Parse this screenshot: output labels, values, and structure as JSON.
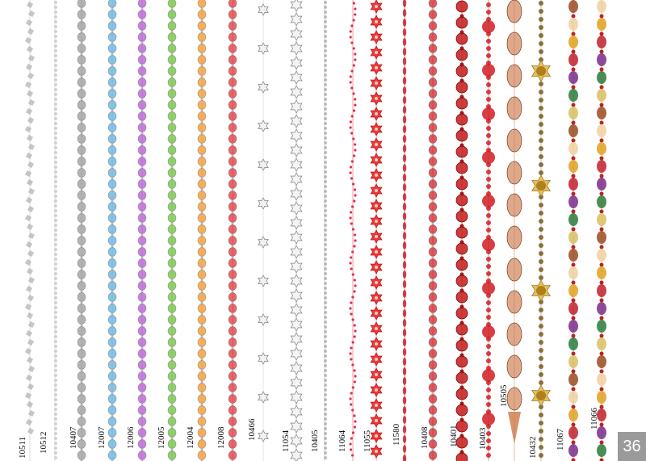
{
  "page_number": "36",
  "strands": [
    {
      "code": "10511",
      "color": "#b8b8b8",
      "bead": "chip"
    },
    {
      "code": "10512",
      "color": "#c4c4c4",
      "bead": "tiny"
    },
    {
      "code": "10407",
      "color": "#9a9a9a",
      "bead": "crystal"
    },
    {
      "code": "12007",
      "color": "#5fb0dc",
      "bead": "crystal"
    },
    {
      "code": "12006",
      "color": "#b45ad2",
      "bead": "crystal"
    },
    {
      "code": "12005",
      "color": "#6cc13c",
      "bead": "crystal"
    },
    {
      "code": "12004",
      "color": "#f0952a",
      "bead": "crystal"
    },
    {
      "code": "12008",
      "color": "#e0343c",
      "bead": "crystal"
    },
    {
      "code": "10466",
      "color": "#c8c8c8",
      "bead": "star-sparse"
    },
    {
      "code": "11054",
      "color": "#bdbdbd",
      "bead": "star"
    },
    {
      "code": "10405",
      "color": "#a8a8a8",
      "bead": "tiny"
    },
    {
      "code": "11064",
      "color": "#e0304a",
      "bead": "drip"
    },
    {
      "code": "11055",
      "color": "#ef3a3a",
      "bead": "flower"
    },
    {
      "code": "11580",
      "color": "#c8202c",
      "bead": "thin"
    },
    {
      "code": "10408",
      "color": "#d0242c",
      "bead": "crystal"
    },
    {
      "code": "10401",
      "color": "#c41a1a",
      "bead": "round"
    },
    {
      "code": "10403",
      "color": "#d01c22",
      "bead": "round-small"
    },
    {
      "code": "10505",
      "color": "#c8703c",
      "bead": "oval"
    },
    {
      "code": "10432",
      "color": "#8a6a2a",
      "bead": "gold"
    },
    {
      "code": "11067",
      "color": "#a0522d",
      "bead": "mixed"
    },
    {
      "code": "11066",
      "color": "#9aa030",
      "bead": "mixed"
    }
  ]
}
